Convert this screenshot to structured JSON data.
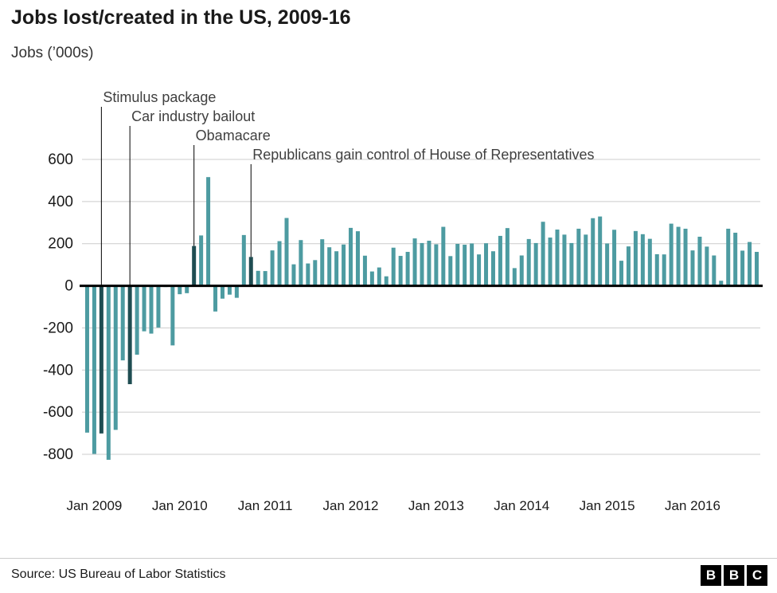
{
  "header": {
    "title": "Jobs lost/created in the US, 2009-16",
    "subtitle": "Jobs (’000s)"
  },
  "footer": {
    "source": "Source: US Bureau of Labor Statistics",
    "logo_letters": [
      "B",
      "B",
      "C"
    ]
  },
  "chart_data": {
    "type": "bar",
    "title": "Jobs lost/created in the US, 2009-16",
    "ylabel": "Jobs (’000s)",
    "ylim": [
      -900,
      700
    ],
    "yticks": [
      600,
      400,
      200,
      0,
      -200,
      -400,
      -600,
      -800
    ],
    "xticks": [
      "Jan 2009",
      "Jan 2010",
      "Jan 2011",
      "Jan 2012",
      "Jan 2013",
      "Jan 2014",
      "Jan 2015",
      "Jan 2016"
    ],
    "grid": true,
    "bar_color": "#4d9ba1",
    "highlight_color": "#1f4d52",
    "axis_color": "#000000",
    "grid_color": "#cccccc",
    "months": [
      "Dec 2008",
      "Jan 2009",
      "Feb 2009",
      "Mar 2009",
      "Apr 2009",
      "May 2009",
      "Jun 2009",
      "Jul 2009",
      "Aug 2009",
      "Sep 2009",
      "Oct 2009",
      "Nov 2009",
      "Dec 2009",
      "Jan 2010",
      "Feb 2010",
      "Mar 2010",
      "Apr 2010",
      "May 2010",
      "Jun 2010",
      "Jul 2010",
      "Aug 2010",
      "Sep 2010",
      "Oct 2010",
      "Nov 2010",
      "Dec 2010",
      "Jan 2011",
      "Feb 2011",
      "Mar 2011",
      "Apr 2011",
      "May 2011",
      "Jun 2011",
      "Jul 2011",
      "Aug 2011",
      "Sep 2011",
      "Oct 2011",
      "Nov 2011",
      "Dec 2011",
      "Jan 2012",
      "Feb 2012",
      "Mar 2012",
      "Apr 2012",
      "May 2012",
      "Jun 2012",
      "Jul 2012",
      "Aug 2012",
      "Sep 2012",
      "Oct 2012",
      "Nov 2012",
      "Dec 2012",
      "Jan 2013",
      "Feb 2013",
      "Mar 2013",
      "Apr 2013",
      "May 2013",
      "Jun 2013",
      "Jul 2013",
      "Aug 2013",
      "Sep 2013",
      "Oct 2013",
      "Nov 2013",
      "Dec 2013",
      "Jan 2014",
      "Feb 2014",
      "Mar 2014",
      "Apr 2014",
      "May 2014",
      "Jun 2014",
      "Jul 2014",
      "Aug 2014",
      "Sep 2014",
      "Oct 2014",
      "Nov 2014",
      "Dec 2014",
      "Jan 2015",
      "Feb 2015",
      "Mar 2015",
      "Apr 2015",
      "May 2015",
      "Jun 2015",
      "Jul 2015",
      "Aug 2015",
      "Sep 2015",
      "Oct 2015",
      "Nov 2015",
      "Dec 2015",
      "Jan 2016",
      "Feb 2016",
      "Mar 2016",
      "Apr 2016",
      "May 2016",
      "Jun 2016",
      "Jul 2016",
      "Aug 2016",
      "Sep 2016",
      "Oct 2016"
    ],
    "values": [
      -697,
      -798,
      -701,
      -826,
      -684,
      -354,
      -467,
      -327,
      -216,
      -227,
      -198,
      -6,
      -283,
      -40,
      -35,
      189,
      239,
      516,
      -122,
      -61,
      -42,
      -57,
      241,
      137,
      71,
      70,
      168,
      212,
      322,
      102,
      217,
      106,
      122,
      221,
      183,
      164,
      196,
      275,
      259,
      143,
      68,
      87,
      45,
      181,
      142,
      161,
      225,
      203,
      214,
      197,
      280,
      141,
      199,
      195,
      201,
      149,
      202,
      164,
      237,
      274,
      84,
      144,
      222,
      203,
      304,
      229,
      267,
      243,
      203,
      271,
      243,
      321,
      329,
      201,
      266,
      119,
      187,
      260,
      245,
      223,
      150,
      149,
      295,
      280,
      271,
      168,
      233,
      186,
      144,
      24,
      271,
      252,
      167,
      208,
      161
    ],
    "annotations": [
      {
        "label": "Stimulus package",
        "month": "Feb 2009"
      },
      {
        "label": "Car industry bailout",
        "month": "Jun 2009"
      },
      {
        "label": "Obamacare",
        "month": "Mar 2010"
      },
      {
        "label": "Republicans gain control of House of Representatives",
        "month": "Nov 2010"
      }
    ]
  }
}
